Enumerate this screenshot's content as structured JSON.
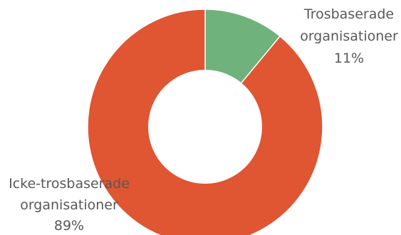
{
  "chart_data": {
    "type": "pie",
    "variant": "donut",
    "title": "",
    "slices": [
      {
        "label_lines": [
          "Trosbaserade",
          "organisationer"
        ],
        "value": 11,
        "value_label": "11%",
        "color": "#70b27c"
      },
      {
        "label_lines": [
          "Icke-trosbaserade",
          "organisationer"
        ],
        "value": 89,
        "value_label": "89%",
        "color": "#e05532"
      }
    ]
  }
}
